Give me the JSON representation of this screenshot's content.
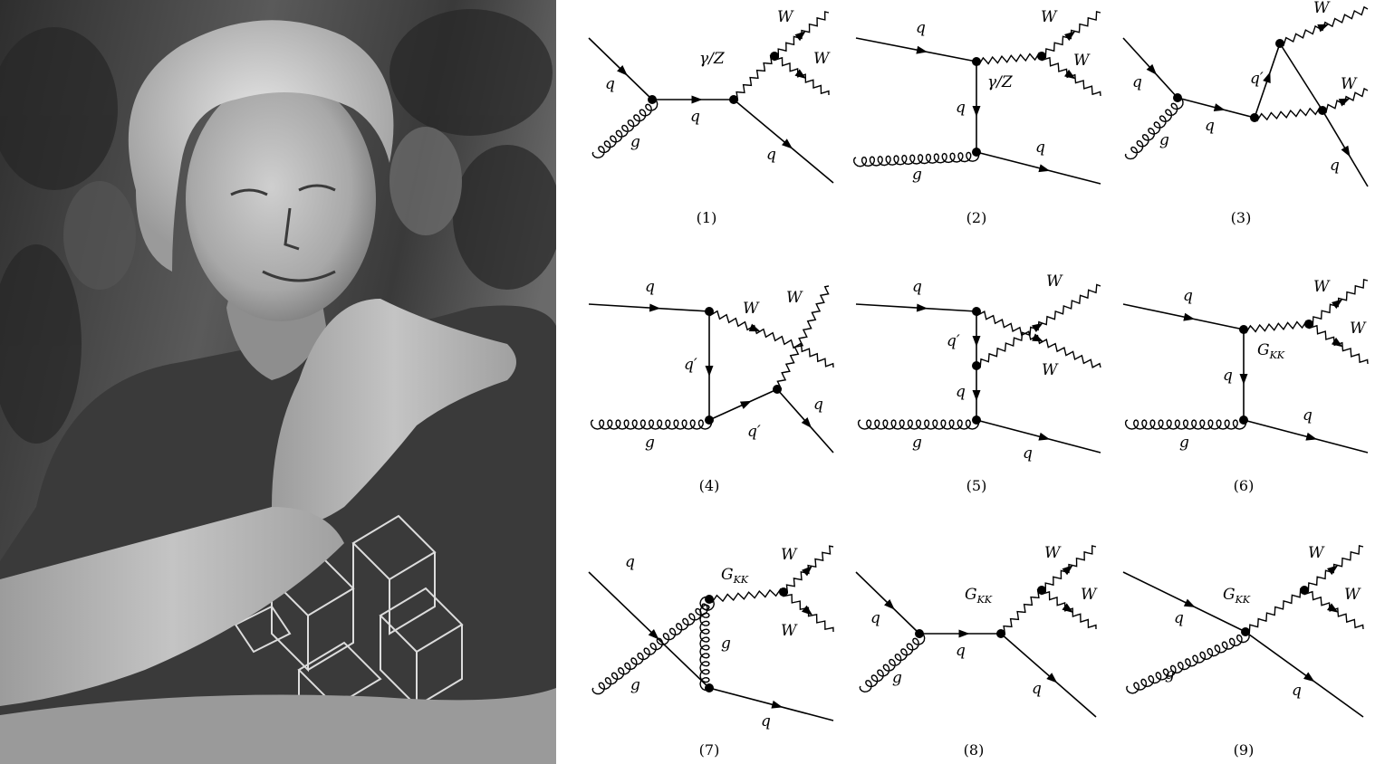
{
  "photo": {
    "description_icon": "portrait-photo",
    "colors": {
      "sky": "#9a9a9a",
      "foliage": "#3d3d3d",
      "shirt": "#3b3b3b",
      "skin": "#b8b8b8",
      "hair": "#d4d4d4"
    }
  },
  "diagrams": [
    {
      "caption": "(1)",
      "labels": [
        "q",
        "g",
        "q",
        "γ/Z",
        "W",
        "W",
        "q"
      ]
    },
    {
      "caption": "(2)",
      "labels": [
        "q",
        "γ/Z",
        "W",
        "W",
        "q",
        "g",
        "q"
      ]
    },
    {
      "caption": "(3)",
      "labels": [
        "q",
        "g",
        "q",
        "q′",
        "W",
        "W",
        "q"
      ]
    },
    {
      "caption": "(4)",
      "labels": [
        "q",
        "W",
        "W",
        "q′",
        "g",
        "q′",
        "q"
      ]
    },
    {
      "caption": "(5)",
      "labels": [
        "q",
        "W",
        "q′",
        "W",
        "q",
        "g",
        "q"
      ]
    },
    {
      "caption": "(6)",
      "labels": [
        "q",
        "W",
        "W",
        "G",
        "KK",
        "q",
        "g",
        "q"
      ]
    },
    {
      "caption": "(7)",
      "labels": [
        "q",
        "G",
        "KK",
        "W",
        "W",
        "g",
        "g",
        "q"
      ]
    },
    {
      "caption": "(8)",
      "labels": [
        "q",
        "g",
        "q",
        "G",
        "KK",
        "W",
        "W",
        "q"
      ]
    },
    {
      "caption": "(9)",
      "labels": [
        "q",
        "g",
        "G",
        "KK",
        "W",
        "W",
        "q"
      ]
    }
  ]
}
